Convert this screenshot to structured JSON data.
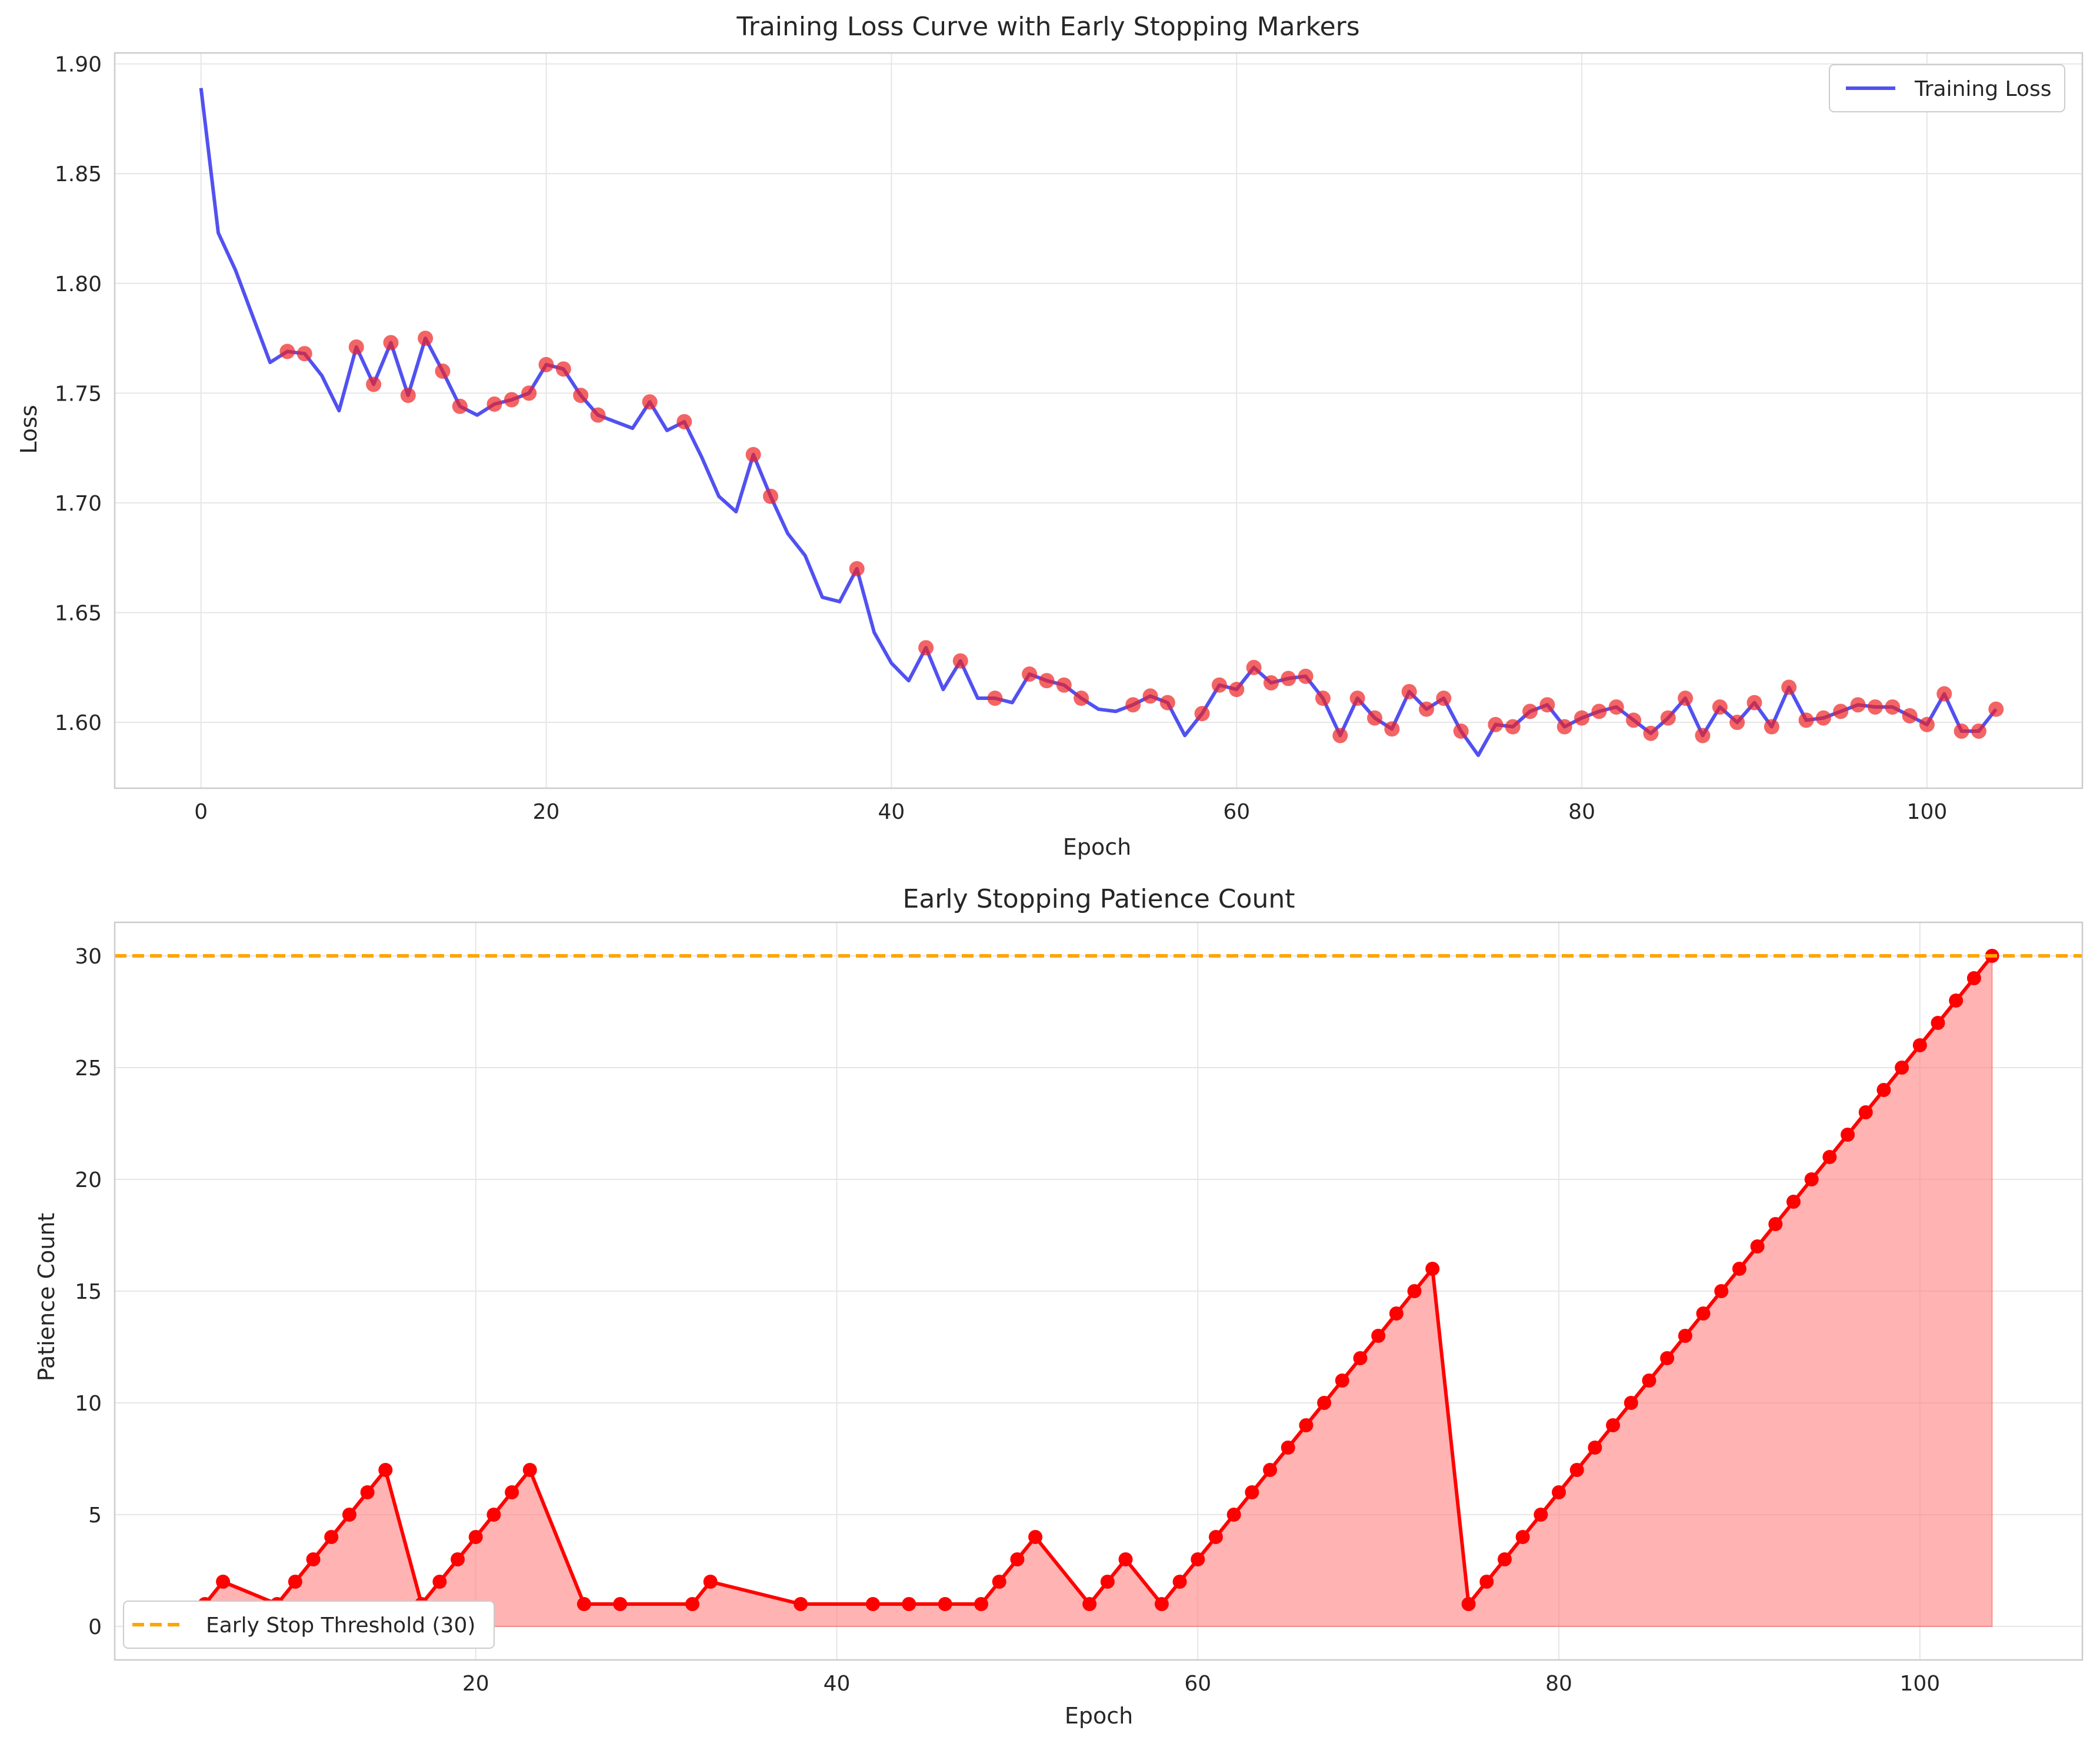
{
  "colors": {
    "loss_line": "#3333ee",
    "marker": "#ee2222",
    "patience": "#ff0000",
    "patience_fill": "#ff8080",
    "threshold": "#ffa500",
    "grid": "#e6e6e6",
    "spine": "#cccccc"
  },
  "chart_data": [
    {
      "type": "line",
      "title": "Training Loss Curve with Early Stopping Markers",
      "xlabel": "Epoch",
      "ylabel": "Loss",
      "xlim": [
        -5,
        109
      ],
      "ylim": [
        1.57,
        1.905
      ],
      "xticks": [
        0,
        20,
        40,
        60,
        80,
        100
      ],
      "yticks": [
        1.6,
        1.65,
        1.7,
        1.75,
        1.8,
        1.85,
        1.9
      ],
      "ytick_labels": [
        "1.60",
        "1.65",
        "1.70",
        "1.75",
        "1.80",
        "1.85",
        "1.90"
      ],
      "grid": true,
      "legend_position": "top-right",
      "series": [
        {
          "name": "Training Loss",
          "x": [
            0,
            1,
            2,
            3,
            4,
            5,
            6,
            7,
            8,
            9,
            10,
            11,
            12,
            13,
            14,
            15,
            16,
            17,
            18,
            19,
            20,
            21,
            22,
            23,
            24,
            25,
            26,
            27,
            28,
            29,
            30,
            31,
            32,
            33,
            34,
            35,
            36,
            37,
            38,
            39,
            40,
            41,
            42,
            43,
            44,
            45,
            46,
            47,
            48,
            49,
            50,
            51,
            52,
            53,
            54,
            55,
            56,
            57,
            58,
            59,
            60,
            61,
            62,
            63,
            64,
            65,
            66,
            67,
            68,
            69,
            70,
            71,
            72,
            73,
            74,
            75,
            76,
            77,
            78,
            79,
            80,
            81,
            82,
            83,
            84,
            85,
            86,
            87,
            88,
            89,
            90,
            91,
            92,
            93,
            94,
            95,
            96,
            97,
            98,
            99,
            100,
            101,
            102,
            103,
            104
          ],
          "y": [
            1.889,
            1.823,
            1.806,
            1.785,
            1.764,
            1.769,
            1.768,
            1.758,
            1.742,
            1.771,
            1.754,
            1.773,
            1.749,
            1.775,
            1.76,
            1.744,
            1.74,
            1.745,
            1.747,
            1.75,
            1.763,
            1.761,
            1.749,
            1.74,
            1.737,
            1.734,
            1.746,
            1.733,
            1.737,
            1.721,
            1.703,
            1.696,
            1.722,
            1.703,
            1.686,
            1.676,
            1.657,
            1.655,
            1.67,
            1.641,
            1.627,
            1.619,
            1.634,
            1.615,
            1.628,
            1.611,
            1.611,
            1.609,
            1.622,
            1.619,
            1.617,
            1.611,
            1.606,
            1.605,
            1.608,
            1.612,
            1.609,
            1.594,
            1.604,
            1.617,
            1.615,
            1.625,
            1.618,
            1.62,
            1.621,
            1.611,
            1.594,
            1.611,
            1.602,
            1.597,
            1.614,
            1.606,
            1.611,
            1.596,
            1.585,
            1.599,
            1.598,
            1.605,
            1.608,
            1.598,
            1.602,
            1.605,
            1.607,
            1.601,
            1.595,
            1.602,
            1.611,
            1.594,
            1.607,
            1.6,
            1.609,
            1.598,
            1.616,
            1.601,
            1.602,
            1.605,
            1.608,
            1.607,
            1.607,
            1.603,
            1.599,
            1.613,
            1.596,
            1.596,
            1.606
          ]
        },
        {
          "role": "early-stopping markers",
          "x": [
            5,
            6,
            9,
            10,
            11,
            12,
            13,
            14,
            15,
            17,
            18,
            19,
            20,
            21,
            22,
            23,
            26,
            28,
            32,
            33,
            38,
            42,
            44,
            46,
            48,
            49,
            50,
            51,
            54,
            55,
            56,
            58,
            59,
            60,
            61,
            62,
            63,
            64,
            65,
            66,
            67,
            68,
            69,
            70,
            71,
            72,
            73,
            75,
            76,
            77,
            78,
            79,
            80,
            81,
            82,
            83,
            84,
            85,
            86,
            87,
            88,
            89,
            90,
            91,
            92,
            93,
            94,
            95,
            96,
            97,
            98,
            99,
            100,
            101,
            102,
            103,
            104
          ],
          "y": [
            1.769,
            1.768,
            1.771,
            1.754,
            1.773,
            1.749,
            1.775,
            1.76,
            1.744,
            1.745,
            1.747,
            1.75,
            1.763,
            1.761,
            1.749,
            1.74,
            1.746,
            1.737,
            1.722,
            1.703,
            1.67,
            1.634,
            1.628,
            1.611,
            1.622,
            1.619,
            1.617,
            1.611,
            1.608,
            1.612,
            1.609,
            1.604,
            1.617,
            1.615,
            1.625,
            1.618,
            1.62,
            1.621,
            1.611,
            1.594,
            1.611,
            1.602,
            1.597,
            1.614,
            1.606,
            1.611,
            1.596,
            1.599,
            1.598,
            1.605,
            1.608,
            1.598,
            1.602,
            1.605,
            1.607,
            1.601,
            1.595,
            1.602,
            1.611,
            1.594,
            1.607,
            1.6,
            1.609,
            1.598,
            1.616,
            1.601,
            1.602,
            1.605,
            1.608,
            1.607,
            1.607,
            1.603,
            1.599,
            1.613,
            1.596,
            1.596,
            1.606
          ]
        }
      ]
    },
    {
      "type": "area",
      "title": "Early Stopping Patience Count",
      "xlabel": "Epoch",
      "ylabel": "Patience Count",
      "xlim": [
        0,
        109
      ],
      "ylim": [
        -1.5,
        31.5
      ],
      "xticks": [
        20,
        40,
        60,
        80,
        100
      ],
      "yticks": [
        0,
        5,
        10,
        15,
        20,
        25,
        30
      ],
      "grid": true,
      "legend_position": "bottom-left",
      "threshold": {
        "name": "Early Stop Threshold (30)",
        "value": 30
      },
      "series": [
        {
          "role": "patience count",
          "x": [
            5,
            6,
            9,
            10,
            11,
            12,
            13,
            14,
            15,
            17,
            18,
            19,
            20,
            21,
            22,
            23,
            26,
            28,
            32,
            33,
            38,
            42,
            44,
            46,
            48,
            49,
            50,
            51,
            54,
            55,
            56,
            58,
            59,
            60,
            61,
            62,
            63,
            64,
            65,
            66,
            67,
            68,
            69,
            70,
            71,
            72,
            73,
            75,
            76,
            77,
            78,
            79,
            80,
            81,
            82,
            83,
            84,
            85,
            86,
            87,
            88,
            89,
            90,
            91,
            92,
            93,
            94,
            95,
            96,
            97,
            98,
            99,
            100,
            101,
            102,
            103,
            104
          ],
          "y": [
            1,
            2,
            1,
            2,
            3,
            4,
            5,
            6,
            7,
            1,
            2,
            3,
            4,
            5,
            6,
            7,
            1,
            1,
            1,
            2,
            1,
            1,
            1,
            1,
            1,
            2,
            3,
            4,
            1,
            2,
            3,
            1,
            2,
            3,
            4,
            5,
            6,
            7,
            8,
            9,
            10,
            11,
            12,
            13,
            14,
            15,
            16,
            1,
            2,
            3,
            4,
            5,
            6,
            7,
            8,
            9,
            10,
            11,
            12,
            13,
            14,
            15,
            16,
            17,
            18,
            19,
            20,
            21,
            22,
            23,
            24,
            25,
            26,
            27,
            28,
            29,
            30
          ]
        }
      ]
    }
  ]
}
